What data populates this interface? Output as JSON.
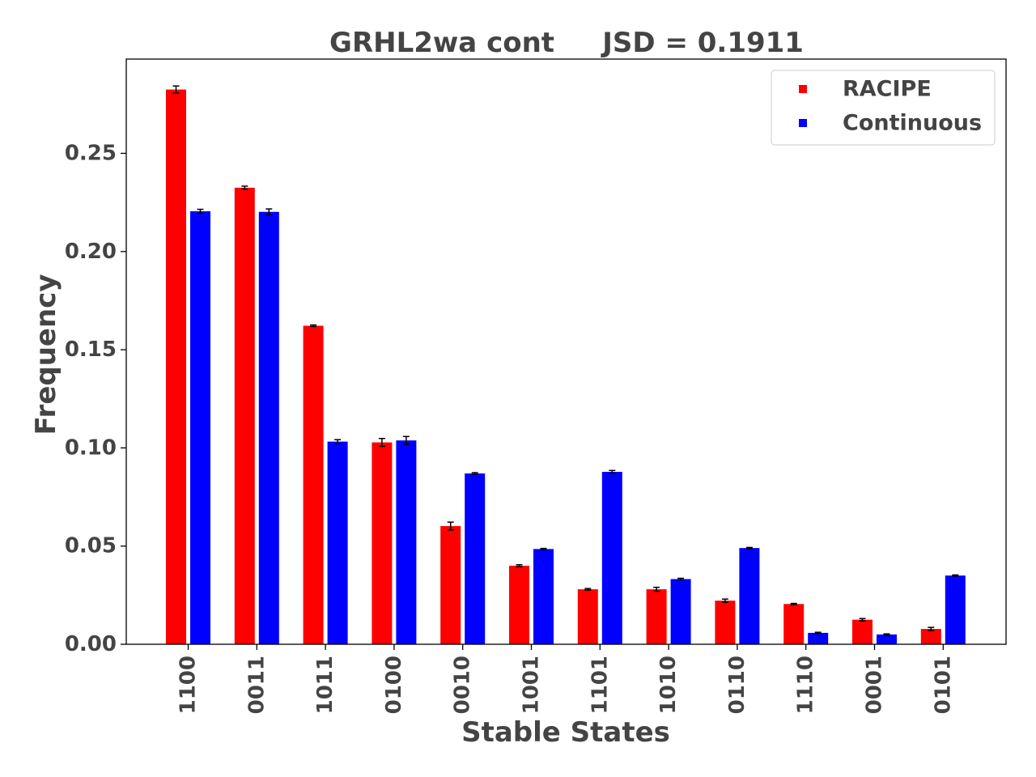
{
  "chart_data": {
    "type": "bar",
    "title": "GRHL2wa cont     JSD = 0.1911",
    "xlabel": "Stable States",
    "ylabel": "Frequency",
    "ylim": [
      0,
      0.298
    ],
    "yticks": [
      "0.00",
      "0.05",
      "0.10",
      "0.15",
      "0.20",
      "0.25"
    ],
    "categories": [
      "1100",
      "0011",
      "1011",
      "0100",
      "0010",
      "1001",
      "1101",
      "1010",
      "0110",
      "1110",
      "0001",
      "0101"
    ],
    "series": [
      {
        "name": "RACIPE",
        "color": "#ff0000",
        "values": [
          0.2825,
          0.2325,
          0.1622,
          0.1028,
          0.0602,
          0.04,
          0.028,
          0.028,
          0.0222,
          0.0205,
          0.0125,
          0.0078
        ],
        "errors": [
          0.0018,
          0.0008,
          0.0004,
          0.002,
          0.002,
          0.0005,
          0.0004,
          0.001,
          0.0008,
          0.0003,
          0.0006,
          0.0008
        ]
      },
      {
        "name": "Continuous",
        "color": "#0000ff",
        "values": [
          0.2205,
          0.2202,
          0.1032,
          0.1038,
          0.087,
          0.0485,
          0.0878,
          0.0332,
          0.049,
          0.0058,
          0.005,
          0.035
        ],
        "errors": [
          0.001,
          0.0015,
          0.001,
          0.002,
          0.0004,
          0.0003,
          0.0007,
          0.0004,
          0.0003,
          0.0003,
          0.0003,
          0.0003
        ]
      }
    ],
    "grid": false,
    "legend_position": "top-right"
  }
}
